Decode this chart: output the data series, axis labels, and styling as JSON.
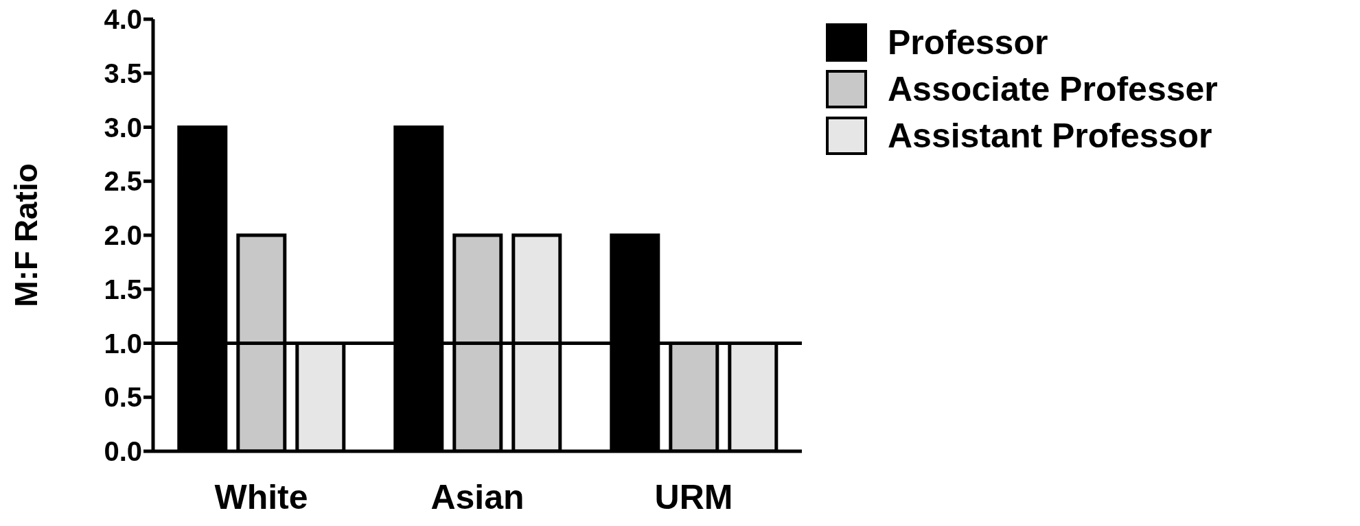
{
  "chart_data": {
    "type": "bar",
    "ylabel": "M:F Ratio",
    "categories": [
      "White",
      "Asian",
      "URM"
    ],
    "series": [
      {
        "name": "Professor",
        "color": "#000000",
        "values": [
          3,
          3,
          2
        ]
      },
      {
        "name": "Associate Professer",
        "color": "#c8c8c8",
        "values": [
          2,
          2,
          1
        ]
      },
      {
        "name": "Assistant Professor",
        "color": "#e6e6e6",
        "values": [
          1,
          2,
          1
        ]
      }
    ],
    "ylim": [
      0,
      4
    ],
    "yticks": [
      {
        "value": 0,
        "label": "0.0"
      },
      0.5,
      {
        "value": 1,
        "label": "1.0"
      },
      1.5,
      {
        "value": 2,
        "label": "2.0"
      },
      2.5,
      {
        "value": 3,
        "label": "3.0"
      },
      3.5,
      {
        "value": 4,
        "label": "4.0"
      }
    ],
    "grid": false,
    "legend": "top right",
    "ref_lines": [
      {
        "axis": "y",
        "value": 1
      }
    ]
  }
}
